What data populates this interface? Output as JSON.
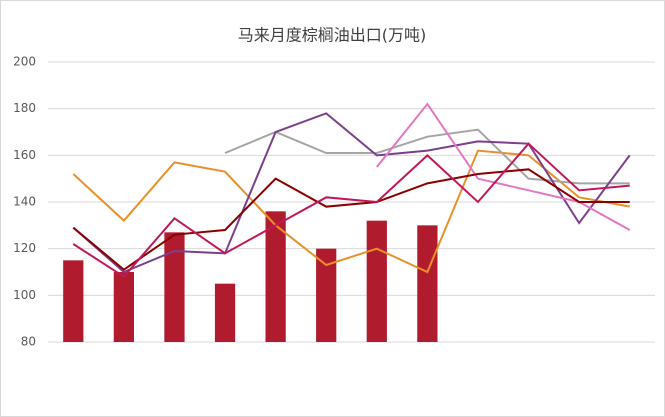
{
  "chart_data": {
    "type": "combo",
    "title": "马来月度棕榈油出口(万吨)",
    "ylim": [
      80,
      200
    ],
    "yticks": [
      80,
      100,
      120,
      140,
      160,
      180,
      200
    ],
    "grid": true,
    "series": [
      {
        "type": "bar",
        "color": "#b01c2e",
        "values": [
          115,
          110,
          127,
          105,
          136,
          120,
          132,
          130,
          null,
          null,
          null,
          null
        ]
      },
      {
        "type": "line",
        "color": "#e8902a",
        "values": [
          152,
          132,
          157,
          153,
          130,
          113,
          120,
          110,
          162,
          160,
          142,
          138
        ]
      },
      {
        "type": "line",
        "color": "#a5a5a5",
        "values": [
          null,
          null,
          null,
          161,
          170,
          161,
          161,
          168,
          171,
          150,
          148,
          148
        ]
      },
      {
        "type": "line",
        "color": "#7b3f8c",
        "values": [
          129,
          110,
          119,
          118,
          170,
          178,
          160,
          162,
          166,
          165,
          131,
          160
        ]
      },
      {
        "type": "line",
        "color": "#e377c2",
        "values": [
          null,
          null,
          null,
          null,
          null,
          null,
          155,
          182,
          150,
          145,
          140,
          128
        ]
      },
      {
        "type": "line",
        "color": "#8b0000",
        "values": [
          129,
          111,
          126,
          128,
          150,
          138,
          140,
          148,
          152,
          154,
          140,
          140
        ]
      },
      {
        "type": "line",
        "color": "#c2185b",
        "values": [
          122,
          108,
          133,
          118,
          130,
          142,
          140,
          160,
          140,
          165,
          145,
          147
        ]
      }
    ]
  }
}
